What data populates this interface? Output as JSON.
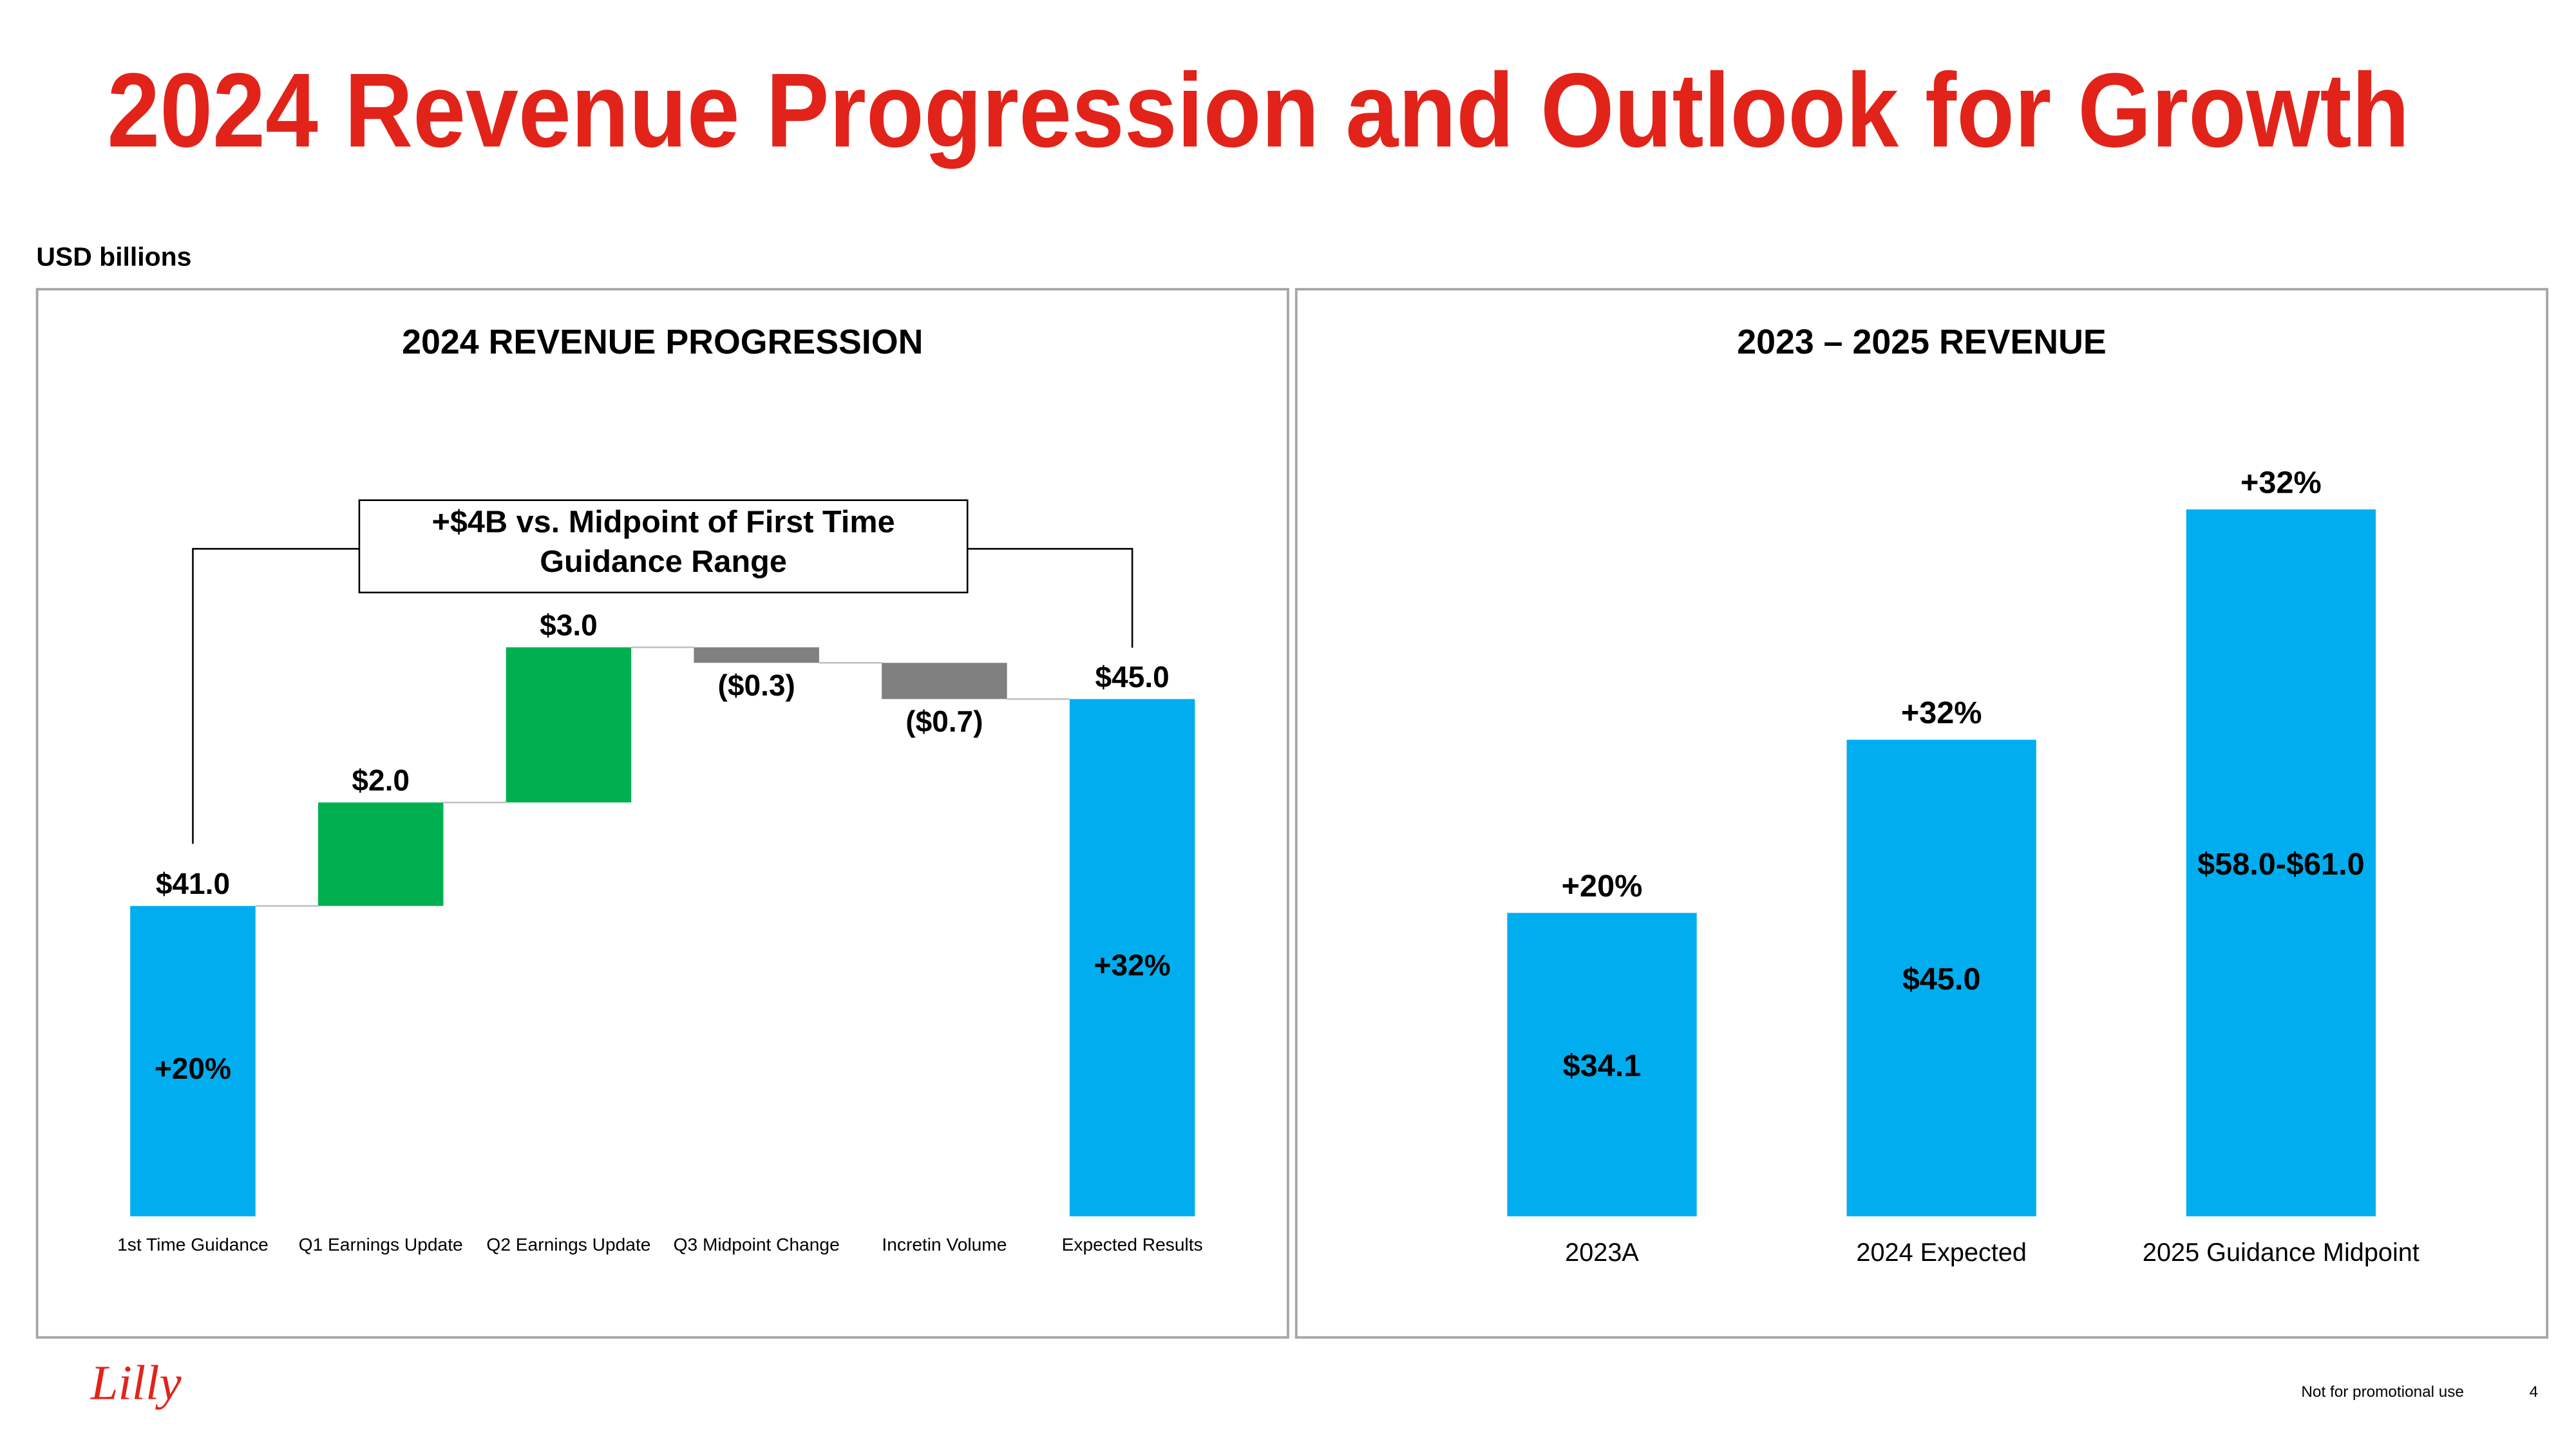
{
  "title": "2024 Revenue Progression and Outlook for Growth",
  "unit_label": "USD billions",
  "logo": "Lilly",
  "footer": "Not for promotional use",
  "page_number": "4",
  "chart_data": [
    {
      "type": "waterfall",
      "title": "2024 REVENUE PROGRESSION",
      "annotation": "+$4B vs. Midpoint of First Time Guidance Range",
      "categories": [
        "1st Time Guidance",
        "Q1 Earnings Update",
        "Q2 Earnings Update",
        "Q3 Midpoint Change",
        "Incretin Volume",
        "Expected Results"
      ],
      "values": [
        41.0,
        2.0,
        3.0,
        -0.3,
        -0.7,
        45.0
      ],
      "value_labels": [
        "$41.0",
        "$2.0",
        "$3.0",
        "($0.3)",
        "($0.7)",
        "$45.0"
      ],
      "inner_labels": [
        "+20%",
        null,
        null,
        null,
        null,
        "+32%"
      ],
      "colors": {
        "total": "#00aeef",
        "increase": "#00b050",
        "decrease": "#808080"
      },
      "ylim": [
        35,
        48
      ]
    },
    {
      "type": "bar",
      "title": "2023 – 2025 REVENUE",
      "categories": [
        "2023A",
        "2024 Expected",
        "2025 Guidance Midpoint"
      ],
      "values": [
        34.1,
        45.0,
        59.5
      ],
      "value_labels": [
        "$34.1",
        "$45.0",
        "$58.0-$61.0"
      ],
      "growth_labels": [
        "+20%",
        "+32%",
        "+32%"
      ],
      "color": "#00aeef",
      "ylim": [
        15,
        62
      ]
    }
  ]
}
